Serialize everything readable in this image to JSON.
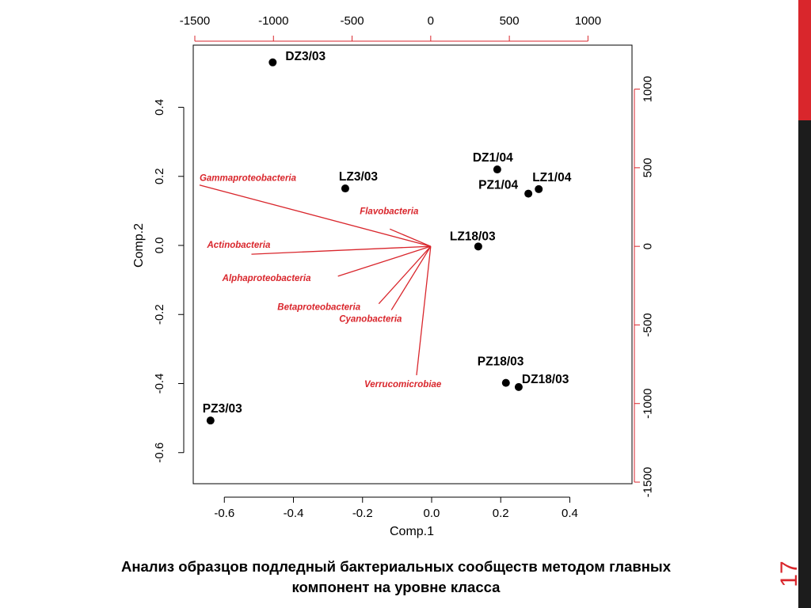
{
  "caption": {
    "line1": "Анализ образцов подледный бактериальных сообществ методом главных",
    "line2": "компонент на уровне класса"
  },
  "page_number": "17",
  "colors": {
    "accent": "#d9262c",
    "points": "#000000",
    "dark_bar": "#1c1c1c"
  },
  "chart_data": {
    "type": "scatter",
    "subtype": "pca-biplot",
    "xlabel": "Comp.1",
    "ylabel": "Comp.2",
    "xlim": [
      -0.69,
      0.58
    ],
    "ylim": [
      -0.69,
      0.58
    ],
    "x_ticks": [
      -0.6,
      -0.4,
      -0.2,
      0.0,
      0.2,
      0.4
    ],
    "x_tick_labels": [
      "-0.6",
      "-0.4",
      "-0.2",
      "0.0",
      "0.2",
      "0.4"
    ],
    "y_ticks": [
      -0.6,
      -0.4,
      -0.2,
      0.0,
      0.2,
      0.4
    ],
    "y_tick_labels": [
      "-0.6",
      "-0.4",
      "-0.2",
      "0.0",
      "0.2",
      "0.4"
    ],
    "secondary_xlim": [
      -1510,
      1280
    ],
    "secondary_ylim": [
      -1510,
      1280
    ],
    "secondary_ticks": [
      -1500,
      -1000,
      -500,
      0,
      500,
      1000
    ],
    "secondary_tick_labels": [
      "-1500",
      "-1000",
      "-500",
      "0",
      "500",
      "1000"
    ],
    "grid": false,
    "points": [
      {
        "label": "DZ3/03",
        "x": -0.46,
        "y": 0.53
      },
      {
        "label": "LZ3/03",
        "x": -0.25,
        "y": 0.165
      },
      {
        "label": "DZ1/04",
        "x": 0.19,
        "y": 0.22
      },
      {
        "label": "PZ1/04",
        "x": 0.28,
        "y": 0.15
      },
      {
        "label": "LZ1/04",
        "x": 0.31,
        "y": 0.163
      },
      {
        "label": "LZ18/03",
        "x": 0.135,
        "y": -0.003
      },
      {
        "label": "PZ18/03",
        "x": 0.215,
        "y": -0.398
      },
      {
        "label": "DZ18/03",
        "x": 0.252,
        "y": -0.41
      },
      {
        "label": "PZ3/03",
        "x": -0.64,
        "y": -0.507
      }
    ],
    "loadings": [
      {
        "label": "Gammaproteobacteria",
        "x": -1470,
        "y": 390
      },
      {
        "label": "Flavobacteria",
        "x": -260,
        "y": 110
      },
      {
        "label": "Actinobacteria",
        "x": -1140,
        "y": -50
      },
      {
        "label": "Alphaproteobacteria",
        "x": -590,
        "y": -190
      },
      {
        "label": "Betaproteobacteria",
        "x": -330,
        "y": -365
      },
      {
        "label": "Cyanobacteria",
        "x": -250,
        "y": -405
      },
      {
        "label": "Verrucomicrobiae",
        "x": -90,
        "y": -820
      }
    ]
  }
}
